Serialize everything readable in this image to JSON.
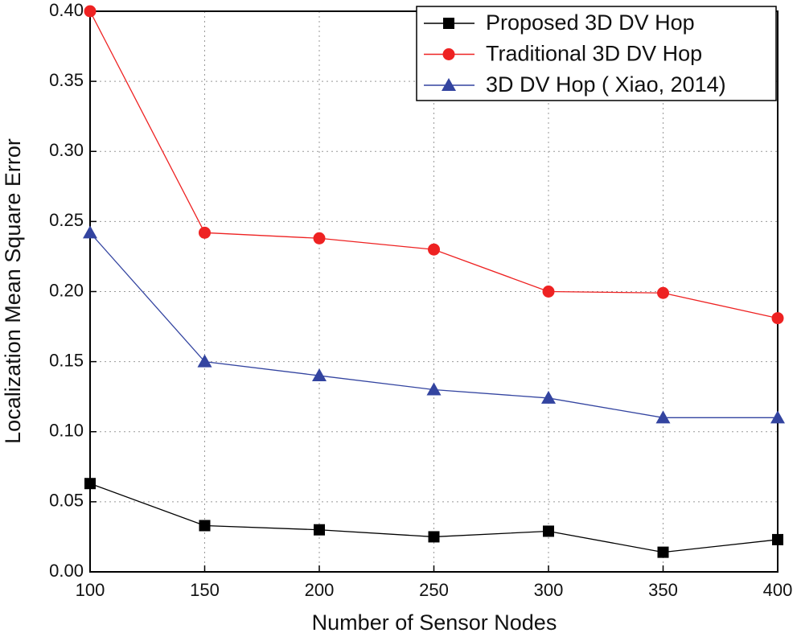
{
  "chart_data": {
    "type": "line",
    "x_label": "Number of Sensor Nodes",
    "y_label": "Localization Mean Square Error",
    "x": [
      100,
      150,
      200,
      250,
      300,
      350,
      400
    ],
    "series": [
      {
        "name": "Proposed 3D DV Hop",
        "color": "#000000",
        "marker": "square",
        "values": [
          0.063,
          0.033,
          0.03,
          0.025,
          0.029,
          0.014,
          0.023
        ]
      },
      {
        "name": "Traditional 3D DV Hop",
        "color": "#ee2222",
        "marker": "circle",
        "values": [
          0.4,
          0.242,
          0.238,
          0.23,
          0.2,
          0.199,
          0.181
        ]
      },
      {
        "name": "3D DV Hop ( Xiao, 2014)",
        "color": "#3344a0",
        "marker": "triangle",
        "values": [
          0.242,
          0.15,
          0.14,
          0.13,
          0.124,
          0.11,
          0.11
        ]
      }
    ],
    "xlim": [
      100,
      400
    ],
    "xticks": [
      100,
      150,
      200,
      250,
      300,
      350,
      400
    ],
    "ylim": [
      0,
      0.4
    ],
    "yticks": [
      {
        "value": 0,
        "label": "0.00"
      },
      {
        "value": 0.05,
        "label": "0.05"
      },
      {
        "value": 0.1,
        "label": "0.10"
      },
      {
        "value": 0.15,
        "label": "0.15"
      },
      {
        "value": 0.2,
        "label": "0.20"
      },
      {
        "value": 0.25,
        "label": "0.25"
      },
      {
        "value": 0.3,
        "label": "0.30"
      },
      {
        "value": 0.35,
        "label": "0.35"
      },
      {
        "value": 0.4,
        "label": "0.40"
      }
    ],
    "grid": true,
    "legend": "top-right"
  }
}
